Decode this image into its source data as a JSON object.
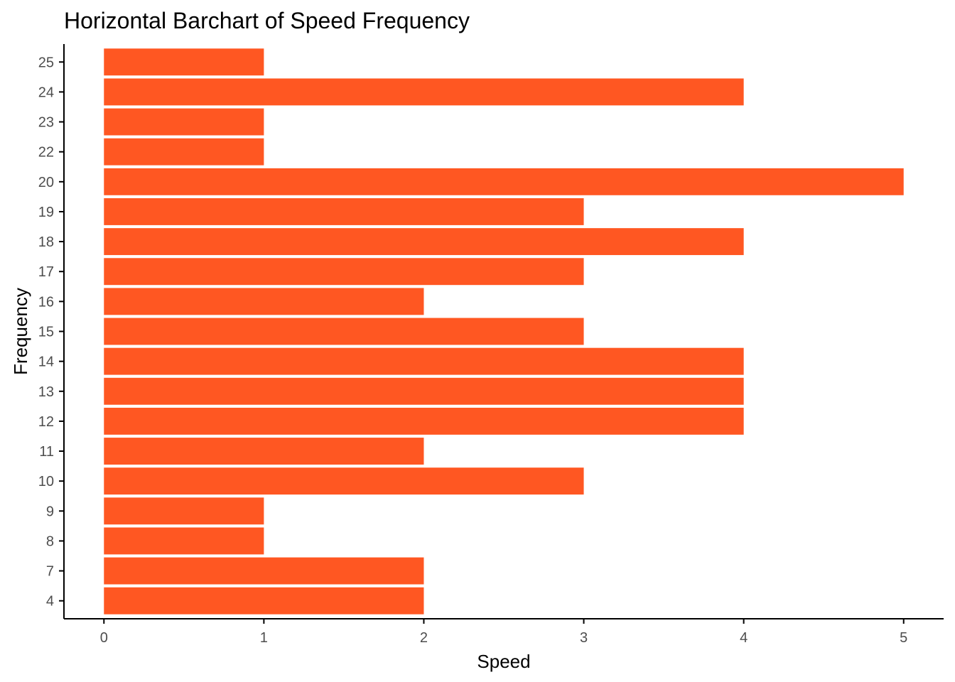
{
  "chart_data": {
    "type": "bar",
    "orientation": "horizontal",
    "title": "Horizontal Barchart of Speed Frequency",
    "xlabel": "Speed",
    "ylabel": "Frequency",
    "categories": [
      "4",
      "7",
      "8",
      "9",
      "10",
      "11",
      "12",
      "13",
      "14",
      "15",
      "16",
      "17",
      "18",
      "19",
      "20",
      "22",
      "23",
      "24",
      "25"
    ],
    "values": [
      2,
      2,
      1,
      1,
      3,
      2,
      4,
      4,
      4,
      3,
      2,
      3,
      4,
      3,
      5,
      1,
      1,
      4,
      1
    ],
    "x_ticks": [
      0,
      1,
      2,
      3,
      4,
      5
    ],
    "xlim": [
      -0.25,
      5.25
    ],
    "grid": false,
    "legend": "none",
    "bar_color": "#FF5722"
  }
}
